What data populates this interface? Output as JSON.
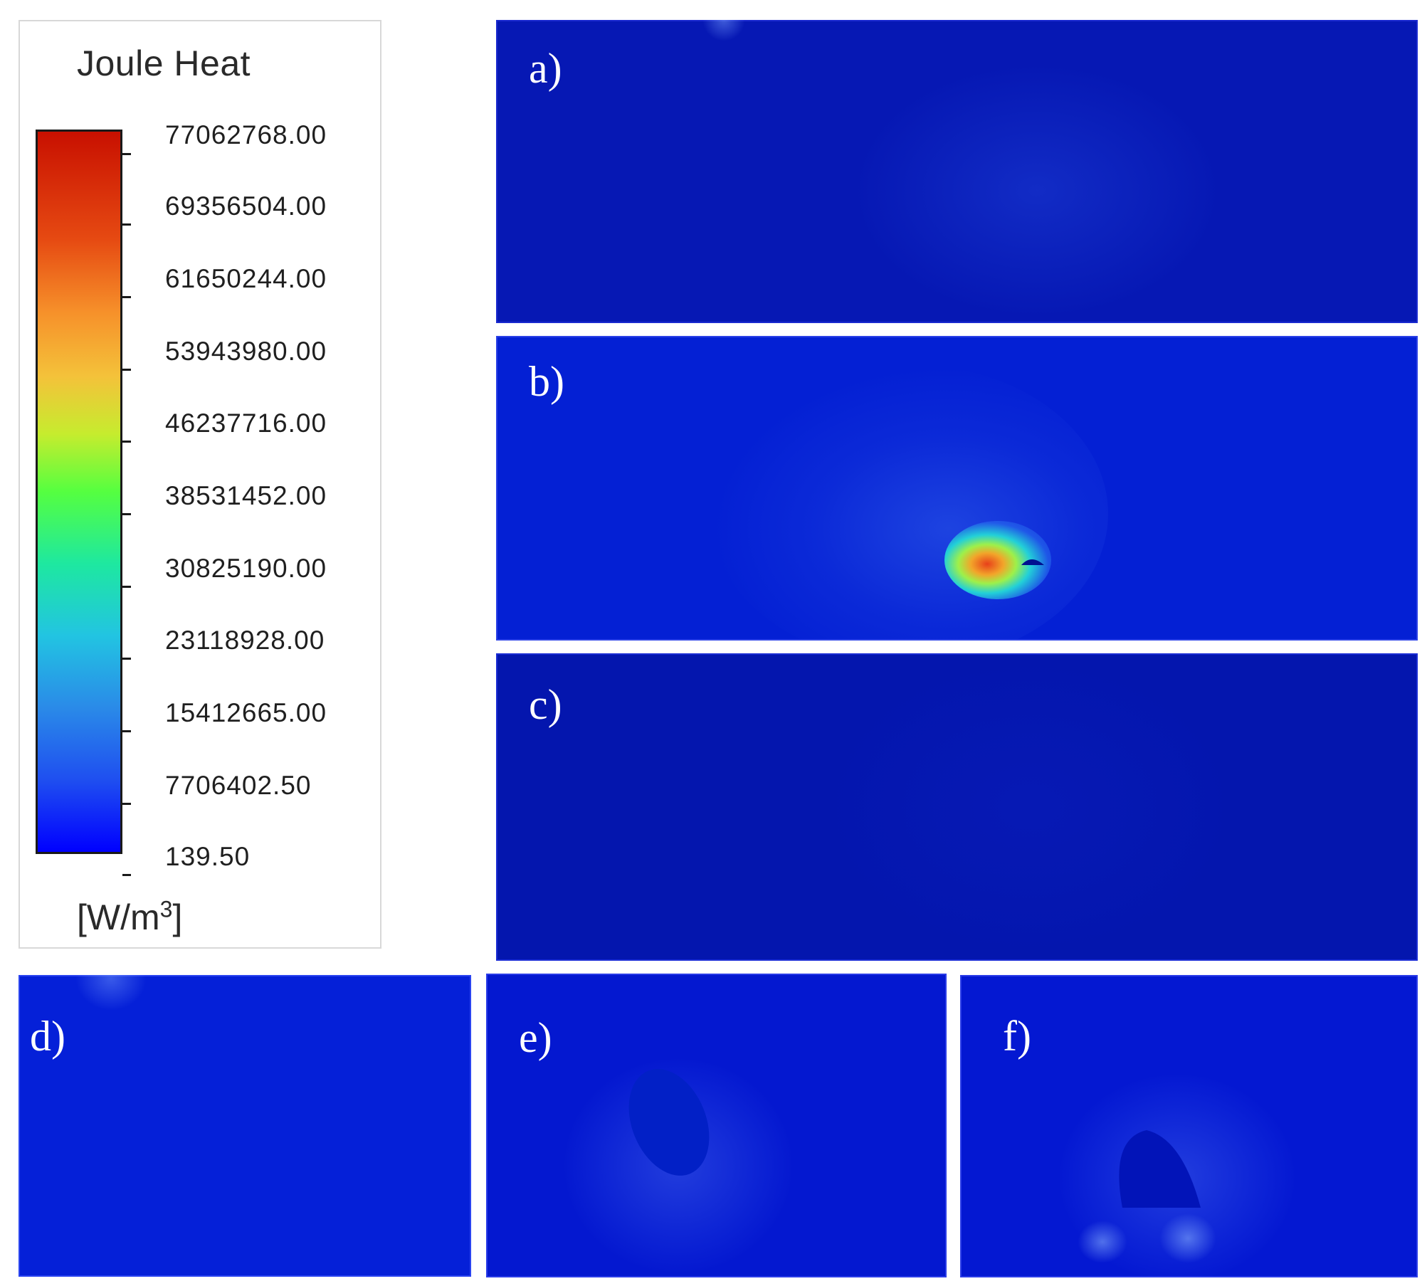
{
  "legend": {
    "title": "Joule Heat",
    "ticks": [
      "77062768.00",
      "69356504.00",
      "61650244.00",
      "53943980.00",
      "46237716.00",
      "38531452.00",
      "30825190.00",
      "23118928.00",
      "15412665.00",
      "7706402.50",
      "139.50"
    ],
    "unit_prefix": "[W/m",
    "unit_exp": "3",
    "unit_suffix": "]",
    "colormap": "rainbow (blue to red)"
  },
  "panels": [
    {
      "id": "a",
      "label": "a)"
    },
    {
      "id": "b",
      "label": "b)"
    },
    {
      "id": "c",
      "label": "c)"
    },
    {
      "id": "d",
      "label": "d)"
    },
    {
      "id": "e",
      "label": "e)"
    },
    {
      "id": "f",
      "label": "f)"
    }
  ],
  "colors": {
    "min": "#0000ff",
    "max": "#c81000",
    "background_field": "#0420d4"
  }
}
